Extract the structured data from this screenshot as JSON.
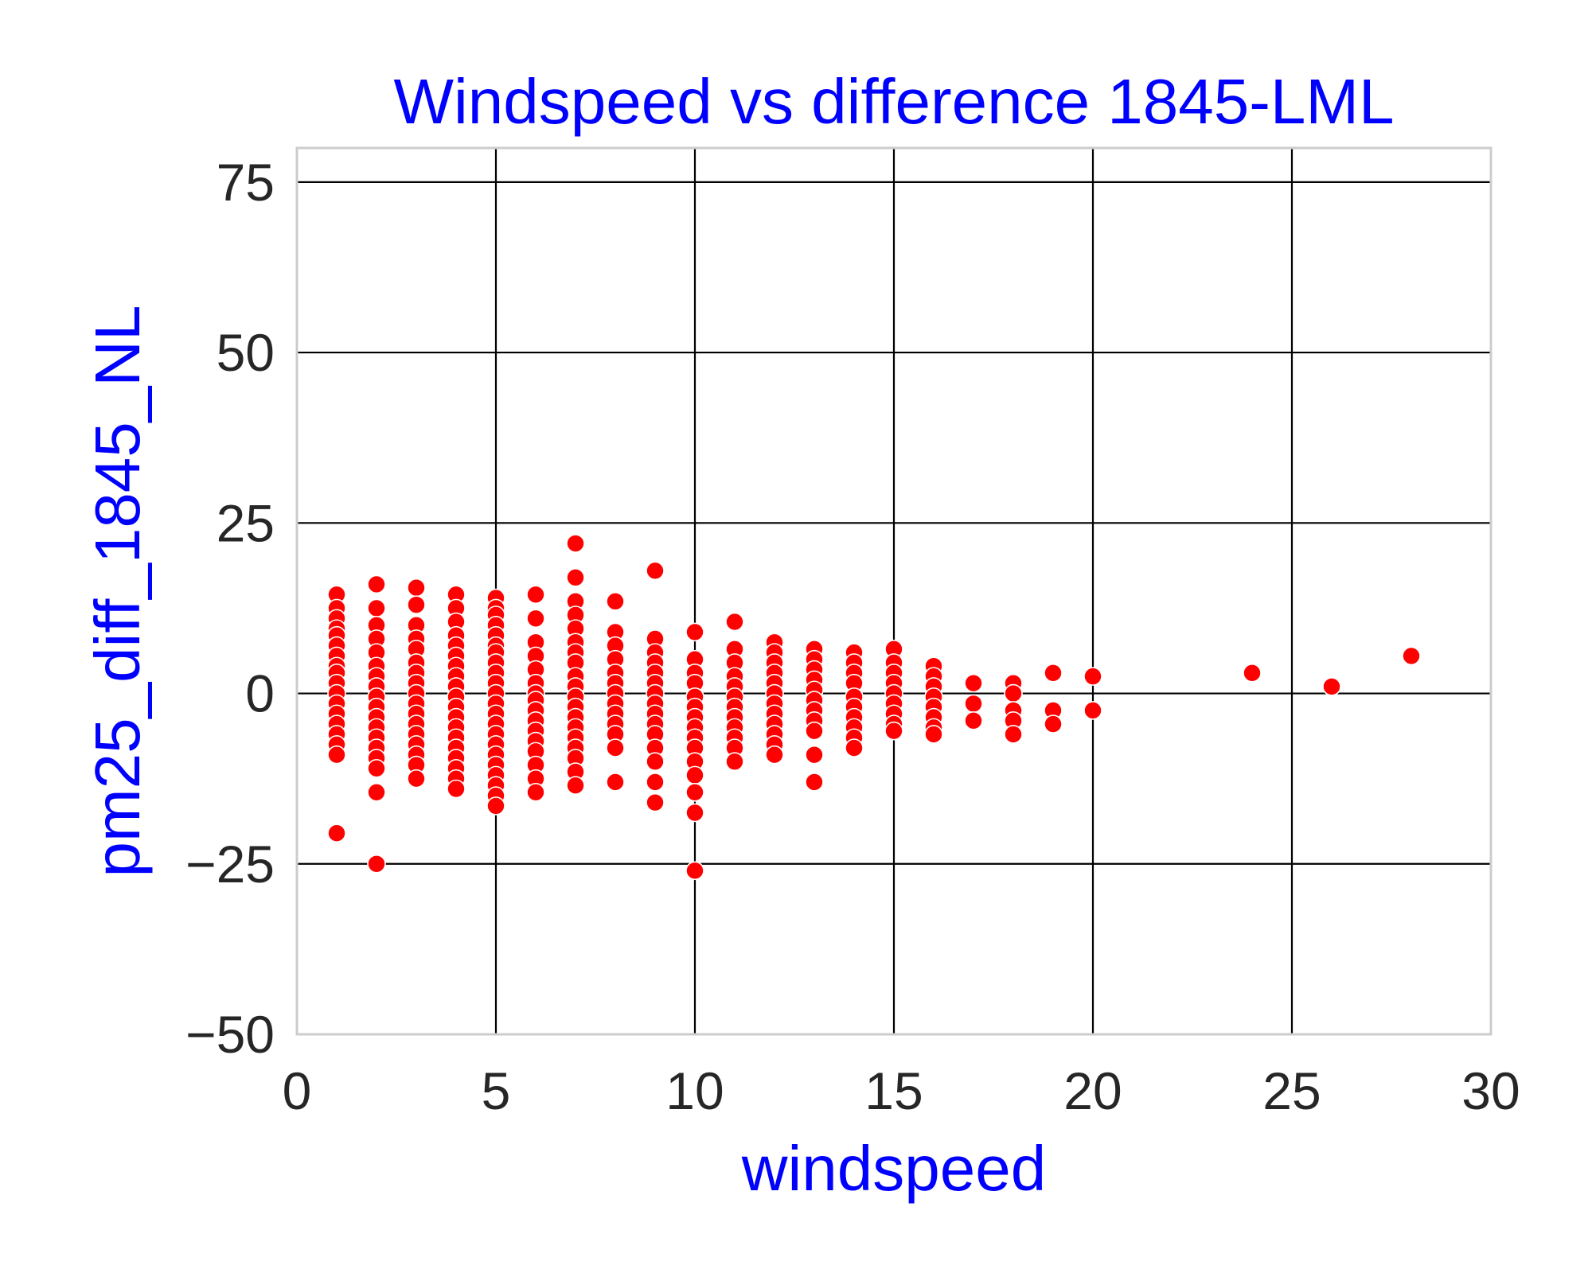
{
  "chart_data": {
    "type": "scatter",
    "title": "Windspeed vs difference 1845-LML",
    "xlabel": "windspeed",
    "ylabel": "pm25_diff_1845_NL",
    "xlim": [
      0,
      30
    ],
    "ylim": [
      -50,
      80
    ],
    "xticks": [
      0,
      5,
      10,
      15,
      20,
      25,
      30
    ],
    "xtick_labels": [
      "0",
      "5",
      "10",
      "15",
      "20",
      "25",
      "30"
    ],
    "yticks": [
      -50,
      -25,
      0,
      25,
      50,
      75
    ],
    "ytick_labels": [
      "−50",
      "−25",
      "0",
      "25",
      "50",
      "75"
    ],
    "grid": true,
    "point_color": "#ff0000",
    "title_color": "#0000ff",
    "label_color": "#0000ff",
    "points": [
      [
        1,
        14.5
      ],
      [
        1,
        12.5
      ],
      [
        1,
        11
      ],
      [
        1,
        9.5
      ],
      [
        1,
        8.5
      ],
      [
        1,
        7
      ],
      [
        1,
        5.5
      ],
      [
        1,
        4
      ],
      [
        1,
        3
      ],
      [
        1,
        1.5
      ],
      [
        1,
        0
      ],
      [
        1,
        -1.5
      ],
      [
        1,
        -3
      ],
      [
        1,
        -4.5
      ],
      [
        1,
        -6
      ],
      [
        1,
        -7.5
      ],
      [
        1,
        -9
      ],
      [
        1,
        -20.5
      ],
      [
        2,
        16
      ],
      [
        2,
        12.5
      ],
      [
        2,
        10
      ],
      [
        2,
        8
      ],
      [
        2,
        6
      ],
      [
        2,
        4
      ],
      [
        2,
        2.5
      ],
      [
        2,
        1
      ],
      [
        2,
        -0.5
      ],
      [
        2,
        -2
      ],
      [
        2,
        -3.5
      ],
      [
        2,
        -5
      ],
      [
        2,
        -6.5
      ],
      [
        2,
        -8
      ],
      [
        2,
        -9.5
      ],
      [
        2,
        -11
      ],
      [
        2,
        -14.5
      ],
      [
        2,
        -25
      ],
      [
        3,
        15.5
      ],
      [
        3,
        13
      ],
      [
        3,
        10
      ],
      [
        3,
        8
      ],
      [
        3,
        6.5
      ],
      [
        3,
        4.5
      ],
      [
        3,
        3
      ],
      [
        3,
        1.5
      ],
      [
        3,
        0
      ],
      [
        3,
        -1.5
      ],
      [
        3,
        -3
      ],
      [
        3,
        -4.5
      ],
      [
        3,
        -6
      ],
      [
        3,
        -7.5
      ],
      [
        3,
        -9
      ],
      [
        3,
        -10.5
      ],
      [
        3,
        -12.5
      ],
      [
        4,
        14.5
      ],
      [
        4,
        12.5
      ],
      [
        4,
        10.5
      ],
      [
        4,
        8.5
      ],
      [
        4,
        7
      ],
      [
        4,
        5.5
      ],
      [
        4,
        4
      ],
      [
        4,
        2.5
      ],
      [
        4,
        1
      ],
      [
        4,
        -0.5
      ],
      [
        4,
        -2
      ],
      [
        4,
        -3.5
      ],
      [
        4,
        -5
      ],
      [
        4,
        -6.5
      ],
      [
        4,
        -8
      ],
      [
        4,
        -9.5
      ],
      [
        4,
        -11
      ],
      [
        4,
        -12.5
      ],
      [
        4,
        -14
      ],
      [
        5,
        14
      ],
      [
        5,
        12.5
      ],
      [
        5,
        11.5
      ],
      [
        5,
        10
      ],
      [
        5,
        8.5
      ],
      [
        5,
        7
      ],
      [
        5,
        6
      ],
      [
        5,
        4.5
      ],
      [
        5,
        3
      ],
      [
        5,
        1.5
      ],
      [
        5,
        0
      ],
      [
        5,
        -1.5
      ],
      [
        5,
        -3
      ],
      [
        5,
        -4.5
      ],
      [
        5,
        -6
      ],
      [
        5,
        -7.5
      ],
      [
        5,
        -9
      ],
      [
        5,
        -10.5
      ],
      [
        5,
        -12
      ],
      [
        5,
        -13.5
      ],
      [
        5,
        -15
      ],
      [
        5,
        -16.5
      ],
      [
        6,
        14.5
      ],
      [
        6,
        11
      ],
      [
        6,
        7.5
      ],
      [
        6,
        5.5
      ],
      [
        6,
        3.5
      ],
      [
        6,
        1.5
      ],
      [
        6,
        0
      ],
      [
        6,
        -1
      ],
      [
        6,
        -2.5
      ],
      [
        6,
        -4
      ],
      [
        6,
        -5.5
      ],
      [
        6,
        -7
      ],
      [
        6,
        -8.5
      ],
      [
        6,
        -10.5
      ],
      [
        6,
        -12.5
      ],
      [
        6,
        -14.5
      ],
      [
        7,
        22
      ],
      [
        7,
        17
      ],
      [
        7,
        13.5
      ],
      [
        7,
        11.5
      ],
      [
        7,
        9.5
      ],
      [
        7,
        7.5
      ],
      [
        7,
        6
      ],
      [
        7,
        4.5
      ],
      [
        7,
        2.5
      ],
      [
        7,
        1
      ],
      [
        7,
        -0.5
      ],
      [
        7,
        -2
      ],
      [
        7,
        -3.5
      ],
      [
        7,
        -5
      ],
      [
        7,
        -6.5
      ],
      [
        7,
        -8
      ],
      [
        7,
        -9.5
      ],
      [
        7,
        -11.5
      ],
      [
        7,
        -13.5
      ],
      [
        8,
        13.5
      ],
      [
        8,
        9
      ],
      [
        8,
        7
      ],
      [
        8,
        5
      ],
      [
        8,
        3
      ],
      [
        8,
        1.5
      ],
      [
        8,
        0
      ],
      [
        8,
        -1.5
      ],
      [
        8,
        -3
      ],
      [
        8,
        -4.5
      ],
      [
        8,
        -6
      ],
      [
        8,
        -8
      ],
      [
        8,
        -13
      ],
      [
        9,
        18
      ],
      [
        9,
        8
      ],
      [
        9,
        6
      ],
      [
        9,
        4.5
      ],
      [
        9,
        3
      ],
      [
        9,
        1.5
      ],
      [
        9,
        0
      ],
      [
        9,
        -1.5
      ],
      [
        9,
        -3
      ],
      [
        9,
        -4.5
      ],
      [
        9,
        -6
      ],
      [
        9,
        -8
      ],
      [
        9,
        -10
      ],
      [
        9,
        -13
      ],
      [
        9,
        -16
      ],
      [
        10,
        9
      ],
      [
        10,
        5
      ],
      [
        10,
        3
      ],
      [
        10,
        1.5
      ],
      [
        10,
        -0.5
      ],
      [
        10,
        -2
      ],
      [
        10,
        -3.5
      ],
      [
        10,
        -5
      ],
      [
        10,
        -6.5
      ],
      [
        10,
        -8
      ],
      [
        10,
        -10
      ],
      [
        10,
        -12
      ],
      [
        10,
        -14.5
      ],
      [
        10,
        -17.5
      ],
      [
        10,
        -26
      ],
      [
        11,
        10.5
      ],
      [
        11,
        6.5
      ],
      [
        11,
        4.5
      ],
      [
        11,
        2.5
      ],
      [
        11,
        1
      ],
      [
        11,
        -0.5
      ],
      [
        11,
        -2
      ],
      [
        11,
        -3.5
      ],
      [
        11,
        -5
      ],
      [
        11,
        -6.5
      ],
      [
        11,
        -8
      ],
      [
        11,
        -10
      ],
      [
        12,
        7.5
      ],
      [
        12,
        6
      ],
      [
        12,
        4.5
      ],
      [
        12,
        3
      ],
      [
        12,
        1.5
      ],
      [
        12,
        0
      ],
      [
        12,
        -1.5
      ],
      [
        12,
        -3
      ],
      [
        12,
        -4.5
      ],
      [
        12,
        -6
      ],
      [
        12,
        -7.5
      ],
      [
        12,
        -9
      ],
      [
        13,
        6.5
      ],
      [
        13,
        5
      ],
      [
        13,
        3.5
      ],
      [
        13,
        2
      ],
      [
        13,
        0.5
      ],
      [
        13,
        -1
      ],
      [
        13,
        -2.5
      ],
      [
        13,
        -4
      ],
      [
        13,
        -5.5
      ],
      [
        13,
        -9
      ],
      [
        13,
        -13
      ],
      [
        14,
        6
      ],
      [
        14,
        4.5
      ],
      [
        14,
        3
      ],
      [
        14,
        1.5
      ],
      [
        14,
        -0.5
      ],
      [
        14,
        -2
      ],
      [
        14,
        -3.5
      ],
      [
        14,
        -5
      ],
      [
        14,
        -6.5
      ],
      [
        14,
        -8
      ],
      [
        15,
        6.5
      ],
      [
        15,
        4.5
      ],
      [
        15,
        3
      ],
      [
        15,
        1.5
      ],
      [
        15,
        0
      ],
      [
        15,
        -1.5
      ],
      [
        15,
        -3
      ],
      [
        15,
        -4.5
      ],
      [
        15,
        -5.5
      ],
      [
        16,
        4
      ],
      [
        16,
        2.5
      ],
      [
        16,
        1
      ],
      [
        16,
        -0.5
      ],
      [
        16,
        -2
      ],
      [
        16,
        -3.5
      ],
      [
        16,
        -5
      ],
      [
        16,
        -6
      ],
      [
        17,
        1.5
      ],
      [
        17,
        -1.5
      ],
      [
        17,
        -4
      ],
      [
        18,
        1.5
      ],
      [
        18,
        0
      ],
      [
        18,
        -2.5
      ],
      [
        18,
        -4
      ],
      [
        18,
        -6
      ],
      [
        19,
        3
      ],
      [
        19,
        -2.5
      ],
      [
        19,
        -4.5
      ],
      [
        20,
        2.5
      ],
      [
        20,
        -2.5
      ],
      [
        24,
        3
      ],
      [
        26,
        1
      ],
      [
        28,
        5.5
      ]
    ]
  }
}
